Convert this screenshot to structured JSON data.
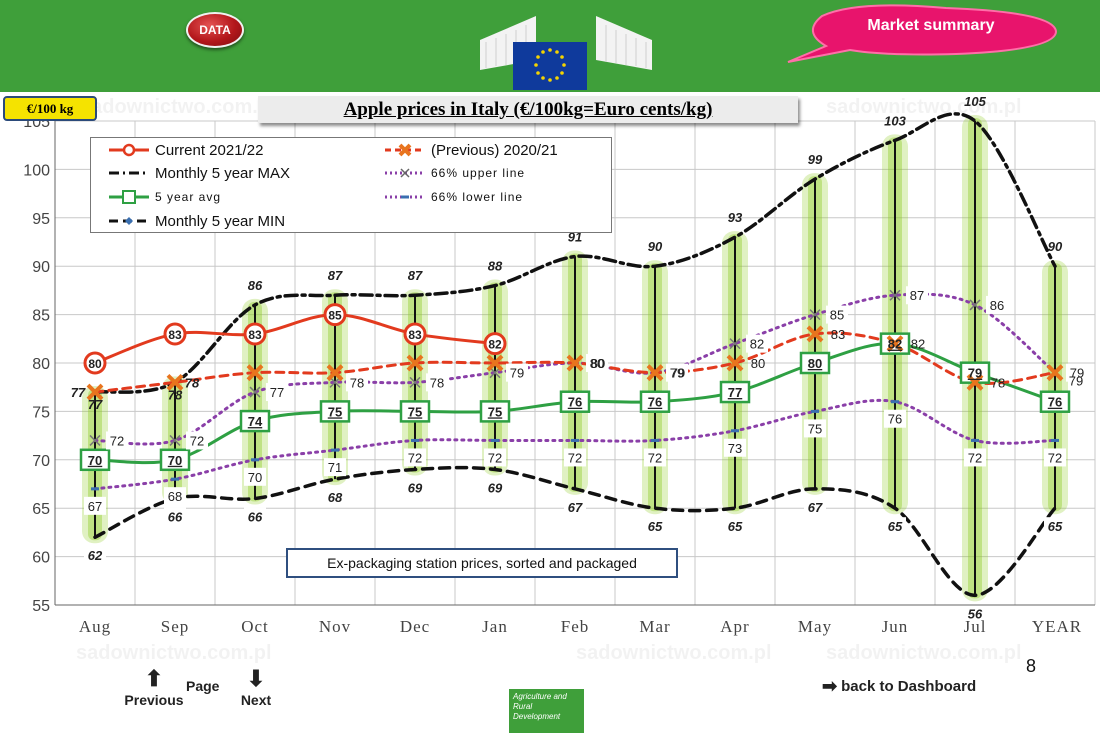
{
  "header": {
    "data_button": "DATA",
    "market_summary": "Market summary"
  },
  "unit_badge": "€/100 kg",
  "watermark": "sadownictwo.com.pl",
  "legend": {
    "current": "Current 2021/22",
    "previous": "(Previous) 2020/21",
    "max": "Monthly 5 year MAX",
    "upper": "66% upper line",
    "avg": "5 year avg",
    "lower": "66% lower line",
    "min": "Monthly 5 year MIN"
  },
  "note": "Ex-packaging station prices, sorted and packaged",
  "nav": {
    "previous": "Previous",
    "page": "Page",
    "next": "Next",
    "back": "back to Dashboard",
    "page_number": "8"
  },
  "footer_logo": "Agriculture and Rural Development",
  "colors": {
    "green_bar": "#3f9f3a",
    "current": "#e23a1e",
    "previous": "#e23a1e",
    "avg": "#2ea043",
    "band": "#8fcd25",
    "percentile": "#8a3fa8",
    "extremes": "#111111"
  },
  "chart_data": {
    "type": "line",
    "title": "Apple prices in Italy (€/100kg=Euro cents/kg)",
    "ylabel": "€/100 kg",
    "xlabel": "",
    "categories": [
      "Aug",
      "Sep",
      "Oct",
      "Nov",
      "Dec",
      "Jan",
      "Feb",
      "Mar",
      "Apr",
      "May",
      "Jun",
      "Jul",
      "YEAR"
    ],
    "ylim": [
      55,
      105
    ],
    "yticks": [
      55,
      60,
      65,
      70,
      75,
      80,
      85,
      90,
      95,
      100,
      105
    ],
    "grid": true,
    "series": [
      {
        "name": "Current 2021/22",
        "values": [
          80,
          83,
          83,
          85,
          83,
          82,
          null,
          null,
          null,
          null,
          null,
          null,
          null
        ]
      },
      {
        "name": "(Previous) 2020/21",
        "values": [
          77,
          78,
          79,
          79,
          80,
          80,
          80,
          79,
          80,
          83,
          82,
          78,
          79
        ]
      },
      {
        "name": "Monthly 5 year MAX",
        "values": [
          77,
          78,
          86,
          87,
          87,
          88,
          91,
          90,
          93,
          99,
          103,
          105,
          90
        ]
      },
      {
        "name": "66% upper line",
        "values": [
          72,
          72,
          77,
          78,
          78,
          79,
          80,
          79,
          82,
          85,
          87,
          86,
          79
        ]
      },
      {
        "name": "5 year avg",
        "values": [
          70,
          70,
          74,
          75,
          75,
          75,
          76,
          76,
          77,
          80,
          82,
          79,
          76
        ]
      },
      {
        "name": "66% lower line",
        "values": [
          67,
          68,
          70,
          71,
          72,
          72,
          72,
          72,
          73,
          75,
          76,
          72,
          72
        ]
      },
      {
        "name": "Monthly 5 year MIN",
        "values": [
          62,
          66,
          66,
          68,
          69,
          69,
          67,
          65,
          65,
          67,
          65,
          56,
          65
        ]
      }
    ]
  }
}
